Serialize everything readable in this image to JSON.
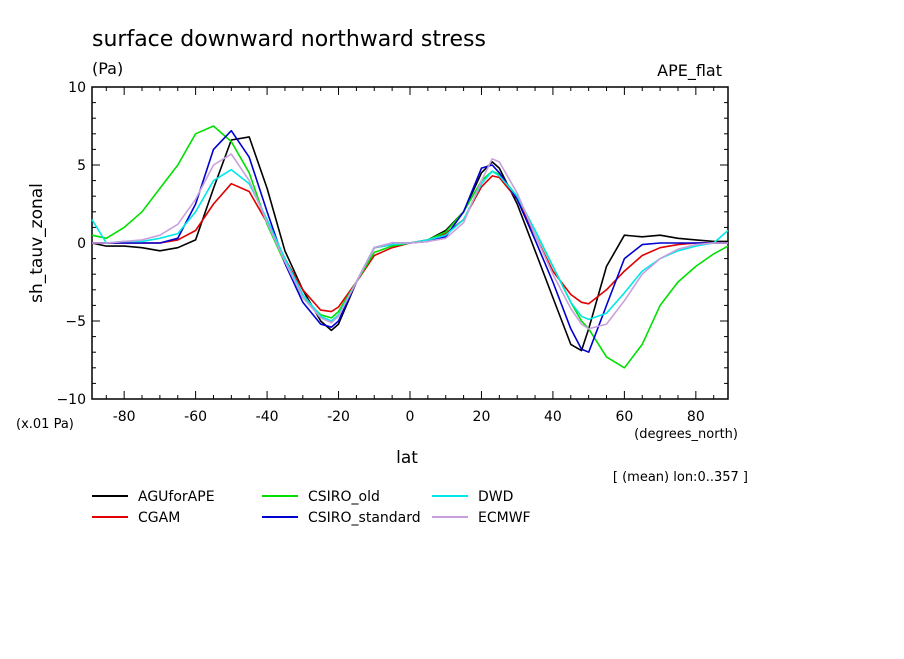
{
  "chart_data": {
    "type": "line",
    "title": "surface downward northward stress",
    "units": "(Pa)",
    "experiment": "APE_flat",
    "ylabel": "sh_tauv_zonal",
    "xlabel": "lat",
    "scale_note": "(x.01 Pa)",
    "x_units": "(degrees_north)",
    "averaging_note": "[ (mean) lon:0..357 ]",
    "xlim": [
      -89,
      89
    ],
    "ylim": [
      -10,
      10
    ],
    "x_ticks": [
      "-80",
      "-60",
      "-40",
      "-20",
      "0",
      "20",
      "40",
      "60",
      "80"
    ],
    "y_ticks": [
      "10",
      "5",
      "0",
      "−5",
      "−10"
    ],
    "x": [
      -89,
      -85,
      -80,
      -75,
      -70,
      -65,
      -60,
      -55,
      -50,
      -45,
      -40,
      -35,
      -30,
      -25,
      -22,
      -20,
      -15,
      -10,
      -5,
      0,
      5,
      10,
      15,
      20,
      23,
      25,
      30,
      35,
      40,
      45,
      48,
      50,
      55,
      60,
      65,
      70,
      75,
      80,
      85,
      89
    ],
    "series": [
      {
        "name": "AGUforAPE",
        "color": "#000000",
        "values": [
          0.0,
          -0.2,
          -0.2,
          -0.3,
          -0.5,
          -0.3,
          0.2,
          3.5,
          6.6,
          6.8,
          3.5,
          -0.5,
          -3.0,
          -5.0,
          -5.6,
          -5.2,
          -2.5,
          -0.3,
          -0.1,
          0.0,
          0.2,
          0.8,
          2.0,
          4.5,
          5.2,
          4.8,
          2.5,
          -0.5,
          -3.5,
          -6.5,
          -6.9,
          -5.5,
          -1.5,
          0.5,
          0.4,
          0.5,
          0.3,
          0.2,
          0.1,
          0.1
        ]
      },
      {
        "name": "CGAM",
        "color": "#e00000",
        "values": [
          0.0,
          0.0,
          0.0,
          0.0,
          0.0,
          0.2,
          0.8,
          2.5,
          3.8,
          3.3,
          1.3,
          -1.0,
          -3.0,
          -4.3,
          -4.4,
          -4.1,
          -2.5,
          -0.8,
          -0.3,
          0.0,
          0.2,
          0.6,
          1.5,
          3.6,
          4.3,
          4.2,
          2.8,
          0.5,
          -1.8,
          -3.3,
          -3.8,
          -3.9,
          -3.0,
          -1.8,
          -0.8,
          -0.3,
          -0.1,
          0.0,
          0.0,
          0.0
        ]
      },
      {
        "name": "CSIRO_old",
        "color": "#00e000",
        "values": [
          0.5,
          0.3,
          1.0,
          2.0,
          3.5,
          5.0,
          7.0,
          7.5,
          6.5,
          4.5,
          1.2,
          -1.3,
          -3.5,
          -4.6,
          -4.8,
          -4.4,
          -2.5,
          -0.6,
          -0.2,
          0.0,
          0.2,
          0.7,
          2.0,
          4.0,
          4.6,
          4.4,
          3.0,
          0.8,
          -1.5,
          -3.8,
          -5.0,
          -5.5,
          -7.3,
          -8.0,
          -6.5,
          -4.0,
          -2.5,
          -1.5,
          -0.7,
          -0.2
        ]
      },
      {
        "name": "CSIRO_standard",
        "color": "#0000d0",
        "values": [
          0.0,
          0.0,
          0.0,
          0.0,
          0.0,
          0.3,
          2.5,
          6.0,
          7.2,
          5.5,
          2.0,
          -1.3,
          -3.8,
          -5.2,
          -5.4,
          -5.0,
          -2.5,
          -0.3,
          0.0,
          0.0,
          0.1,
          0.4,
          2.0,
          4.8,
          5.0,
          4.5,
          2.8,
          0.2,
          -2.5,
          -5.5,
          -6.8,
          -7.0,
          -4.0,
          -1.0,
          -0.1,
          0.0,
          0.0,
          0.0,
          0.0,
          0.0
        ]
      },
      {
        "name": "DWD",
        "color": "#00e8e8",
        "values": [
          1.5,
          0.0,
          0.1,
          0.1,
          0.3,
          0.6,
          2.0,
          4.0,
          4.7,
          3.8,
          1.5,
          -1.0,
          -3.3,
          -4.7,
          -5.0,
          -4.6,
          -2.5,
          -0.3,
          -0.1,
          0.0,
          0.2,
          0.5,
          1.5,
          3.8,
          4.6,
          4.3,
          3.0,
          0.8,
          -1.5,
          -3.8,
          -4.7,
          -4.9,
          -4.5,
          -3.2,
          -1.8,
          -1.0,
          -0.5,
          -0.2,
          0.0,
          0.8
        ]
      },
      {
        "name": "ECMWF",
        "color": "#c8a0dc",
        "values": [
          0.0,
          0.0,
          0.1,
          0.2,
          0.5,
          1.2,
          2.8,
          5.0,
          5.7,
          4.0,
          1.3,
          -1.2,
          -3.5,
          -4.8,
          -5.1,
          -4.7,
          -2.5,
          -0.3,
          0.0,
          0.0,
          0.1,
          0.3,
          1.3,
          4.0,
          5.4,
          5.2,
          3.2,
          0.5,
          -2.0,
          -4.2,
          -5.2,
          -5.5,
          -5.2,
          -3.7,
          -2.0,
          -1.0,
          -0.4,
          -0.1,
          0.0,
          0.0
        ]
      }
    ]
  }
}
